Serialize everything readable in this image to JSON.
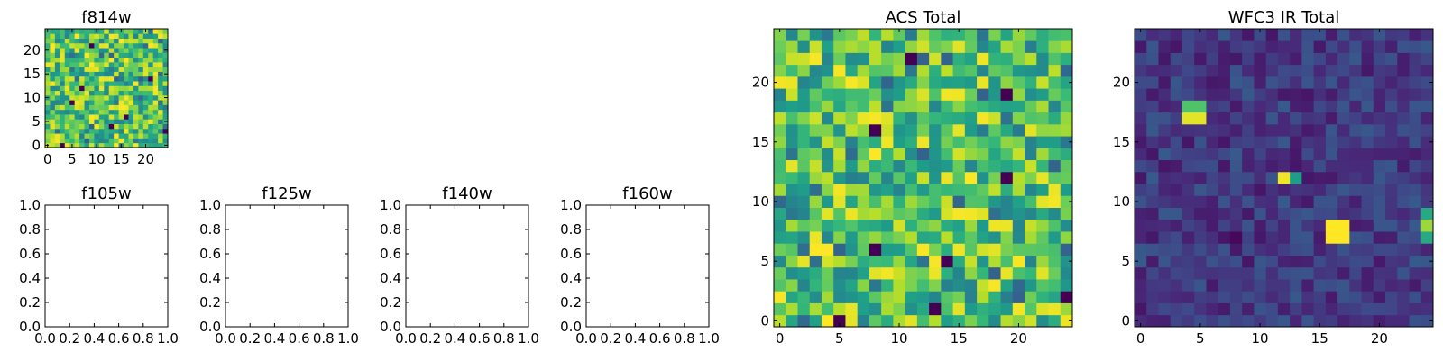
{
  "chart_data": [
    {
      "type": "heatmap",
      "title": "f814w",
      "colormap": "viridis",
      "xlim": [
        -0.5,
        24.5
      ],
      "ylim": [
        -0.5,
        24.5
      ],
      "xticks": [
        0,
        5,
        10,
        15,
        20
      ],
      "xtick_labels": [
        "0",
        "5",
        "10",
        "15",
        "20"
      ],
      "yticks": [
        0,
        5,
        10,
        15,
        20
      ],
      "ytick_labels": [
        "0",
        "5",
        "10",
        "15",
        "20"
      ],
      "grid": false
    },
    {
      "type": "scatter",
      "title": "f105w",
      "xlim": [
        0,
        1
      ],
      "ylim": [
        0,
        1
      ],
      "xticks": [
        0,
        0.2,
        0.4,
        0.6,
        0.8,
        1.0
      ],
      "xtick_labels": [
        "0.0",
        "0.2",
        "0.4",
        "0.6",
        "0.8",
        "1.0"
      ],
      "yticks": [
        0,
        0.2,
        0.4,
        0.6,
        0.8,
        1.0
      ],
      "ytick_labels": [
        "0.0",
        "0.2",
        "0.4",
        "0.6",
        "0.8",
        "1.0"
      ],
      "series": [],
      "grid": false
    },
    {
      "type": "scatter",
      "title": "f125w",
      "xlim": [
        0,
        1
      ],
      "ylim": [
        0,
        1
      ],
      "xticks": [
        0,
        0.2,
        0.4,
        0.6,
        0.8,
        1.0
      ],
      "xtick_labels": [
        "0.0",
        "0.2",
        "0.4",
        "0.6",
        "0.8",
        "1.0"
      ],
      "yticks": [
        0,
        0.2,
        0.4,
        0.6,
        0.8,
        1.0
      ],
      "ytick_labels": [
        "0.0",
        "0.2",
        "0.4",
        "0.6",
        "0.8",
        "1.0"
      ],
      "series": [],
      "grid": false
    },
    {
      "type": "scatter",
      "title": "f140w",
      "xlim": [
        0,
        1
      ],
      "ylim": [
        0,
        1
      ],
      "xticks": [
        0,
        0.2,
        0.4,
        0.6,
        0.8,
        1.0
      ],
      "xtick_labels": [
        "0.0",
        "0.2",
        "0.4",
        "0.6",
        "0.8",
        "1.0"
      ],
      "yticks": [
        0,
        0.2,
        0.4,
        0.6,
        0.8,
        1.0
      ],
      "ytick_labels": [
        "0.0",
        "0.2",
        "0.4",
        "0.6",
        "0.8",
        "1.0"
      ],
      "series": [],
      "grid": false
    },
    {
      "type": "scatter",
      "title": "f160w",
      "xlim": [
        0,
        1
      ],
      "ylim": [
        0,
        1
      ],
      "xticks": [
        0,
        0.2,
        0.4,
        0.6,
        0.8,
        1.0
      ],
      "xtick_labels": [
        "0.0",
        "0.2",
        "0.4",
        "0.6",
        "0.8",
        "1.0"
      ],
      "yticks": [
        0,
        0.2,
        0.4,
        0.6,
        0.8,
        1.0
      ],
      "ytick_labels": [
        "0.0",
        "0.2",
        "0.4",
        "0.6",
        "0.8",
        "1.0"
      ],
      "series": [],
      "grid": false
    },
    {
      "type": "heatmap",
      "title": "ACS Total",
      "colormap": "viridis",
      "xlim": [
        -0.5,
        24.5
      ],
      "ylim": [
        -0.5,
        24.5
      ],
      "xticks": [
        0,
        5,
        10,
        15,
        20
      ],
      "xtick_labels": [
        "0",
        "5",
        "10",
        "15",
        "20"
      ],
      "yticks": [
        0,
        5,
        10,
        15,
        20
      ],
      "ytick_labels": [
        "0",
        "5",
        "10",
        "15",
        "20"
      ],
      "grid": false
    },
    {
      "type": "heatmap",
      "title": "WFC3 IR Total",
      "colormap": "viridis",
      "xlim": [
        -0.5,
        24.5
      ],
      "ylim": [
        -0.5,
        24.5
      ],
      "xticks": [
        0,
        5,
        10,
        15,
        20
      ],
      "xtick_labels": [
        "0",
        "5",
        "10",
        "15",
        "20"
      ],
      "yticks": [
        0,
        5,
        10,
        15,
        20
      ],
      "ytick_labels": [
        "0",
        "5",
        "10",
        "15",
        "20"
      ],
      "grid": false
    }
  ]
}
